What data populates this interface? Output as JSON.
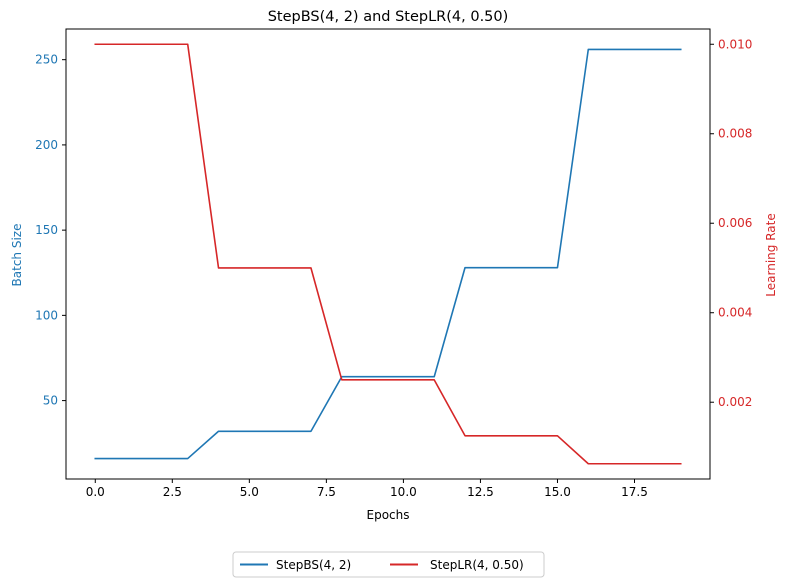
{
  "chart_data": {
    "type": "line",
    "title": "StepBS(4, 2) and StepLR(4, 0.50)",
    "xlabel": "Epochs",
    "ylabel_left": "Batch Size",
    "ylabel_right": "Learning Rate",
    "xlim": [
      -0.95,
      19.95
    ],
    "ylim_left": [
      4.0,
      268.0
    ],
    "ylim_right": [
      0.000284,
      0.010341
    ],
    "xticks": [
      0.0,
      2.5,
      5.0,
      7.5,
      10.0,
      12.5,
      15.0,
      17.5
    ],
    "xtick_labels": [
      "0.0",
      "2.5",
      "5.0",
      "7.5",
      "10.0",
      "12.5",
      "15.0",
      "17.5"
    ],
    "yticks_left": [
      50,
      100,
      150,
      200,
      250
    ],
    "yticks_left_labels": [
      "50",
      "100",
      "150",
      "200",
      "250"
    ],
    "yticks_right": [
      0.002,
      0.004,
      0.006,
      0.008,
      0.01
    ],
    "yticks_right_labels": [
      "0.002",
      "0.004",
      "0.006",
      "0.008",
      "0.010"
    ],
    "grid": false,
    "legend_placement": "bottom-center",
    "x": [
      0,
      1,
      2,
      3,
      4,
      5,
      6,
      7,
      8,
      9,
      10,
      11,
      12,
      13,
      14,
      15,
      16,
      17,
      18,
      19
    ],
    "series": [
      {
        "name": "StepBS(4, 2)",
        "axis": "left",
        "color": "#1f77b4",
        "values": [
          16,
          16,
          16,
          16,
          32,
          32,
          32,
          32,
          64,
          64,
          64,
          64,
          128,
          128,
          128,
          128,
          256,
          256,
          256,
          256
        ]
      },
      {
        "name": "StepLR(4, 0.50)",
        "axis": "right",
        "color": "#d62728",
        "values": [
          0.01,
          0.01,
          0.01,
          0.01,
          0.005,
          0.005,
          0.005,
          0.005,
          0.0025,
          0.0025,
          0.0025,
          0.0025,
          0.00125,
          0.00125,
          0.00125,
          0.00125,
          0.000625,
          0.000625,
          0.000625,
          0.000625
        ]
      }
    ]
  }
}
